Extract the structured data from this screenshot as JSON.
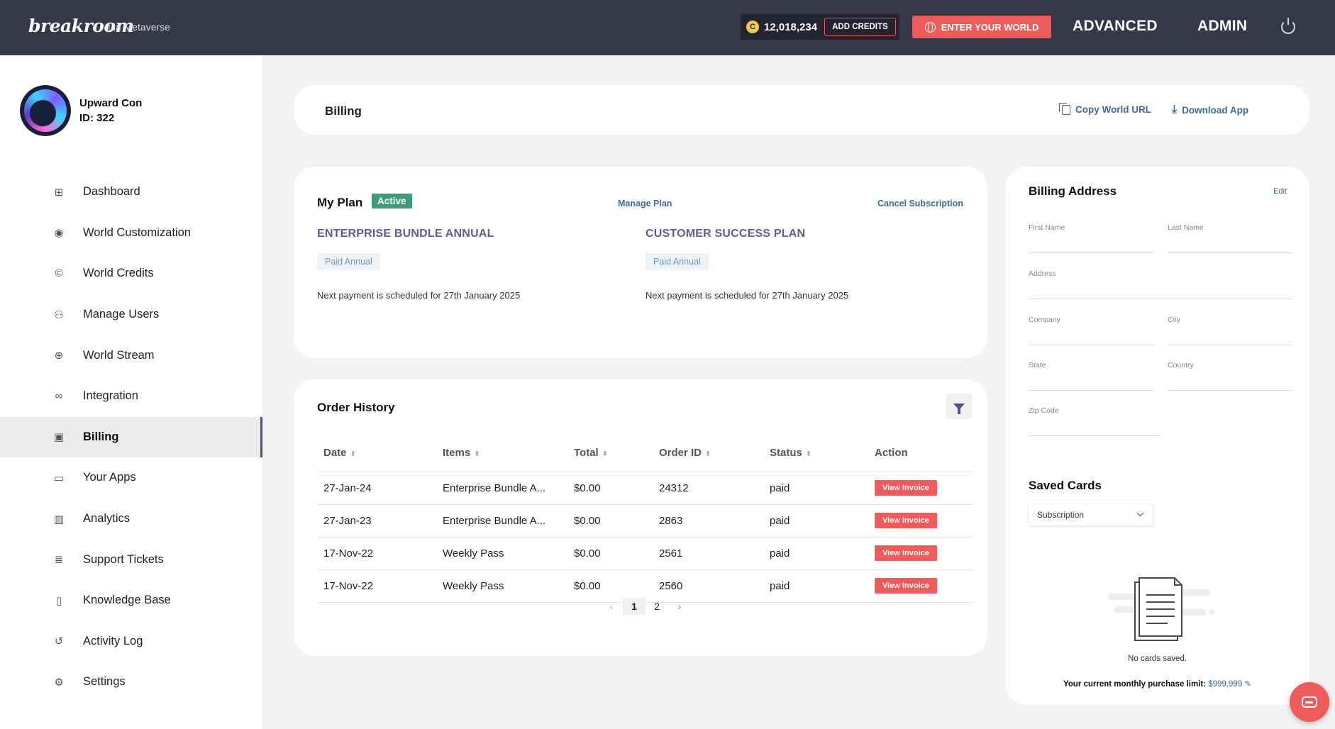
{
  "topbar": {
    "logo": "breakroom",
    "world_name": "Lia Metaverse",
    "credits": "12,018,234",
    "add_credits": "ADD CREDITS",
    "enter_world": "ENTER YOUR WORLD",
    "advanced": "ADVANCED",
    "admin": "ADMIN"
  },
  "user": {
    "name": "Upward Con",
    "id": "ID: 322"
  },
  "sidebar": {
    "items": [
      {
        "label": "Dashboard",
        "icon": "dashboard-icon",
        "glyph": "⊞"
      },
      {
        "label": "World Customization",
        "icon": "palette-icon",
        "glyph": "◉"
      },
      {
        "label": "World Credits",
        "icon": "credits-icon",
        "glyph": "©"
      },
      {
        "label": "Manage Users",
        "icon": "add-user-icon",
        "glyph": "⚇"
      },
      {
        "label": "World Stream",
        "icon": "globe-icon",
        "glyph": "⊕"
      },
      {
        "label": "Integration",
        "icon": "link-icon",
        "glyph": "∞"
      },
      {
        "label": "Billing",
        "icon": "billing-icon",
        "glyph": "▣"
      },
      {
        "label": "Your Apps",
        "icon": "apps-icon",
        "glyph": "▭"
      },
      {
        "label": "Analytics",
        "icon": "analytics-icon",
        "glyph": "▥"
      },
      {
        "label": "Support Tickets",
        "icon": "ticket-icon",
        "glyph": "≣"
      },
      {
        "label": "Knowledge Base",
        "icon": "book-icon",
        "glyph": "▯"
      },
      {
        "label": "Activity Log",
        "icon": "history-icon",
        "glyph": "↺"
      },
      {
        "label": "Settings",
        "icon": "gear-icon",
        "glyph": "⚙"
      }
    ],
    "active_index": 6
  },
  "header": {
    "title": "Billing",
    "copy_url": "Copy World URL",
    "download_app": "Download App"
  },
  "plan": {
    "title": "My Plan",
    "status": "Active",
    "manage": "Manage Plan",
    "cancel": "Cancel Subscription",
    "plans": [
      {
        "name": "ENTERPRISE BUNDLE ANNUAL",
        "tag": "Paid Annual",
        "next": "Next payment is scheduled for 27th January 2025"
      },
      {
        "name": "CUSTOMER SUCCESS PLAN",
        "tag": "Paid Annual",
        "next": "Next payment is scheduled for 27th January 2025"
      }
    ]
  },
  "orders": {
    "title": "Order History",
    "columns": [
      "Date",
      "Items",
      "Total",
      "Order ID",
      "Status",
      "Action"
    ],
    "rows": [
      {
        "date": "27-Jan-24",
        "items": "Enterprise Bundle A...",
        "total": "$0.00",
        "order_id": "24312",
        "status": "paid",
        "action": "View Invoice"
      },
      {
        "date": "27-Jan-23",
        "items": "Enterprise Bundle A...",
        "total": "$0.00",
        "order_id": "2863",
        "status": "paid",
        "action": "View Invoice"
      },
      {
        "date": "17-Nov-22",
        "items": "Weekly Pass",
        "total": "$0.00",
        "order_id": "2561",
        "status": "paid",
        "action": "View Invoice"
      },
      {
        "date": "17-Nov-22",
        "items": "Weekly Pass",
        "total": "$0.00",
        "order_id": "2560",
        "status": "paid",
        "action": "View Invoice"
      }
    ],
    "pages": [
      "1",
      "2"
    ],
    "current_page": "1"
  },
  "billing_address": {
    "title": "Billing Address",
    "edit": "Edit",
    "fields": {
      "first_name": {
        "label": "First Name",
        "value": ""
      },
      "last_name": {
        "label": "Last Name",
        "value": ""
      },
      "address": {
        "label": "Address",
        "value": ""
      },
      "company": {
        "label": "Company",
        "value": ""
      },
      "city": {
        "label": "City",
        "value": ""
      },
      "state": {
        "label": "State",
        "value": ""
      },
      "country": {
        "label": "Country",
        "value": ""
      },
      "zip": {
        "label": "Zip Code",
        "value": ""
      }
    }
  },
  "saved_cards": {
    "title": "Saved Cards",
    "selected": "Subscription",
    "empty": "No cards saved.",
    "limit_label": "Your current monthly purchase limit:",
    "limit_value": "$999,999"
  },
  "colors": {
    "topbar": "#363848",
    "accent": "#ef5b5b",
    "link": "#3f6b9a",
    "active_badge": "#3e9c7a",
    "plan_name": "#5e5e93"
  }
}
